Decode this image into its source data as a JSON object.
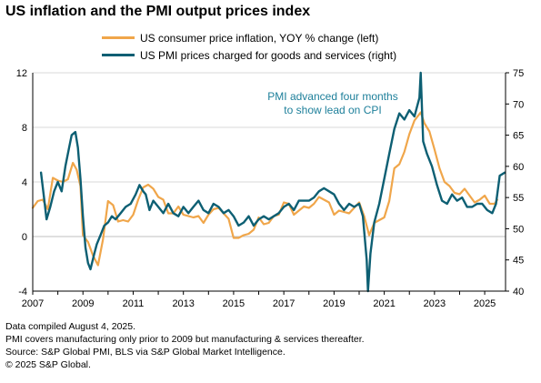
{
  "title": "US inflation and the PMI output prices index",
  "colors": {
    "cpi": "#f0a64a",
    "pmi": "#0d5f73",
    "annotation": "#1d7f9a",
    "grid": "#d9d9d9",
    "axis": "#000000"
  },
  "legend": [
    {
      "key": "cpi",
      "label": "US consumer price inflation, YOY % change (left)"
    },
    {
      "key": "pmi",
      "label": "US PMI prices charged for goods and services (right)"
    }
  ],
  "annotation": {
    "line1": "PMI advanced four months",
    "line2": "to show lead on CPI"
  },
  "footnotes": [
    "Data compiled August 4, 2025.",
    "PMI covers manufacturing only prior to 2009 but manufacturing & services thereafter.",
    "Source: S&P Global PMI, BLS via S&P Global Market Intelligence.",
    "© 2025 S&P Global."
  ],
  "chart_data": {
    "type": "line",
    "title": "US inflation and the PMI output prices index",
    "xlabel": "",
    "ylabel": "",
    "x_ticks": [
      "2007",
      "2009",
      "2011",
      "2013",
      "2015",
      "2017",
      "2019",
      "2021",
      "2023",
      "2025"
    ],
    "xlim": [
      2007.0,
      2025.83
    ],
    "y_left": {
      "lim": [
        -4,
        12
      ],
      "ticks": [
        "-4",
        "0",
        "4",
        "8",
        "12"
      ]
    },
    "y_right": {
      "lim": [
        40,
        75
      ],
      "ticks": [
        "40",
        "45",
        "50",
        "55",
        "60",
        "65",
        "70",
        "75"
      ]
    },
    "grid": "horizontal",
    "legend_position": "top",
    "series": [
      {
        "name": "US consumer price inflation, YOY % change (left)",
        "axis": "left",
        "x": [
          2007.0,
          2007.2,
          2007.4,
          2007.6,
          2007.8,
          2008.0,
          2008.2,
          2008.4,
          2008.6,
          2008.75,
          2008.9,
          2009.0,
          2009.2,
          2009.4,
          2009.6,
          2009.8,
          2010.0,
          2010.2,
          2010.4,
          2010.6,
          2010.8,
          2011.0,
          2011.2,
          2011.4,
          2011.6,
          2011.8,
          2012.0,
          2012.2,
          2012.4,
          2012.6,
          2012.8,
          2013.0,
          2013.2,
          2013.4,
          2013.6,
          2013.8,
          2014.0,
          2014.2,
          2014.4,
          2014.6,
          2014.8,
          2015.0,
          2015.2,
          2015.4,
          2015.6,
          2015.8,
          2016.0,
          2016.2,
          2016.4,
          2016.6,
          2016.8,
          2017.0,
          2017.2,
          2017.4,
          2017.6,
          2017.8,
          2018.0,
          2018.2,
          2018.4,
          2018.6,
          2018.8,
          2019.0,
          2019.2,
          2019.4,
          2019.6,
          2019.8,
          2020.0,
          2020.2,
          2020.4,
          2020.6,
          2020.8,
          2021.0,
          2021.2,
          2021.4,
          2021.6,
          2021.8,
          2022.0,
          2022.2,
          2022.45,
          2022.6,
          2022.8,
          2023.0,
          2023.2,
          2023.4,
          2023.6,
          2023.8,
          2024.0,
          2024.2,
          2024.4,
          2024.6,
          2024.8,
          2025.0,
          2025.2,
          2025.4,
          2025.5
        ],
        "values": [
          2.1,
          2.6,
          2.7,
          2.0,
          4.3,
          4.1,
          4.0,
          4.2,
          5.4,
          4.9,
          3.7,
          0.1,
          -0.4,
          -1.4,
          -2.1,
          -0.2,
          2.6,
          2.3,
          1.1,
          1.2,
          1.1,
          1.6,
          2.7,
          3.6,
          3.8,
          3.5,
          2.9,
          2.7,
          1.7,
          1.7,
          2.2,
          1.6,
          1.5,
          1.4,
          1.5,
          1.0,
          1.6,
          2.0,
          2.1,
          1.7,
          1.3,
          -0.1,
          -0.1,
          0.1,
          0.2,
          0.5,
          1.4,
          0.9,
          1.0,
          1.5,
          1.6,
          2.5,
          2.4,
          1.6,
          1.9,
          2.2,
          2.1,
          2.4,
          2.9,
          2.7,
          2.5,
          1.6,
          1.9,
          1.8,
          1.7,
          2.1,
          2.5,
          1.5,
          0.1,
          1.0,
          1.2,
          1.4,
          2.6,
          5.0,
          5.3,
          6.2,
          7.5,
          8.5,
          9.1,
          8.3,
          7.7,
          6.4,
          5.0,
          4.0,
          3.7,
          3.2,
          3.1,
          3.5,
          3.0,
          2.5,
          2.7,
          3.0,
          2.4,
          2.4,
          2.7
        ]
      },
      {
        "name": "US PMI prices charged for goods and services (right)",
        "axis": "right",
        "x": [
          2007.33,
          2007.45,
          2007.55,
          2007.7,
          2007.85,
          2008.0,
          2008.15,
          2008.3,
          2008.45,
          2008.55,
          2008.7,
          2008.8,
          2008.9,
          2009.0,
          2009.1,
          2009.2,
          2009.3,
          2009.45,
          2009.55,
          2009.7,
          2009.85,
          2010.0,
          2010.15,
          2010.3,
          2010.5,
          2010.7,
          2010.9,
          2011.1,
          2011.25,
          2011.4,
          2011.5,
          2011.65,
          2011.8,
          2012.0,
          2012.2,
          2012.4,
          2012.6,
          2012.8,
          2013.0,
          2013.2,
          2013.4,
          2013.6,
          2013.8,
          2014.0,
          2014.2,
          2014.4,
          2014.6,
          2014.8,
          2015.0,
          2015.2,
          2015.4,
          2015.6,
          2015.8,
          2016.0,
          2016.2,
          2016.4,
          2016.6,
          2016.8,
          2017.0,
          2017.2,
          2017.4,
          2017.6,
          2017.8,
          2018.0,
          2018.2,
          2018.4,
          2018.6,
          2018.8,
          2019.0,
          2019.2,
          2019.4,
          2019.6,
          2019.8,
          2020.0,
          2020.15,
          2020.3,
          2020.35,
          2020.45,
          2020.6,
          2020.8,
          2021.0,
          2021.2,
          2021.4,
          2021.6,
          2021.8,
          2022.0,
          2022.2,
          2022.4,
          2022.45,
          2022.55,
          2022.7,
          2022.9,
          2023.1,
          2023.3,
          2023.5,
          2023.7,
          2023.9,
          2024.1,
          2024.3,
          2024.5,
          2024.7,
          2024.9,
          2025.1,
          2025.3,
          2025.45,
          2025.6,
          2025.8
        ],
        "values": [
          59.0,
          55.0,
          51.5,
          53.5,
          56.0,
          57.5,
          56.0,
          60.0,
          63.0,
          65.0,
          65.5,
          63.0,
          58.0,
          52.0,
          47.0,
          44.5,
          43.5,
          46.0,
          47.5,
          49.0,
          50.5,
          51.0,
          52.0,
          51.5,
          52.5,
          53.5,
          54.0,
          55.5,
          57.0,
          56.0,
          55.5,
          53.0,
          54.5,
          53.5,
          52.5,
          54.0,
          52.5,
          52.0,
          53.5,
          52.5,
          53.5,
          54.5,
          53.0,
          52.5,
          54.0,
          53.5,
          52.5,
          53.0,
          52.0,
          50.5,
          51.0,
          52.0,
          50.5,
          51.5,
          52.0,
          51.5,
          52.0,
          52.5,
          53.5,
          54.0,
          53.0,
          54.5,
          54.5,
          54.5,
          55.0,
          56.0,
          56.5,
          56.0,
          55.5,
          54.0,
          53.0,
          54.0,
          53.5,
          54.0,
          52.0,
          45.0,
          40.0,
          46.0,
          51.0,
          54.0,
          58.0,
          62.0,
          66.0,
          68.5,
          67.5,
          69.0,
          68.0,
          71.0,
          75.0,
          64.0,
          62.0,
          60.0,
          57.0,
          54.5,
          54.0,
          55.5,
          54.5,
          55.0,
          53.5,
          53.5,
          54.0,
          54.0,
          53.0,
          52.5,
          54.0,
          58.5,
          59.0
        ]
      }
    ]
  }
}
